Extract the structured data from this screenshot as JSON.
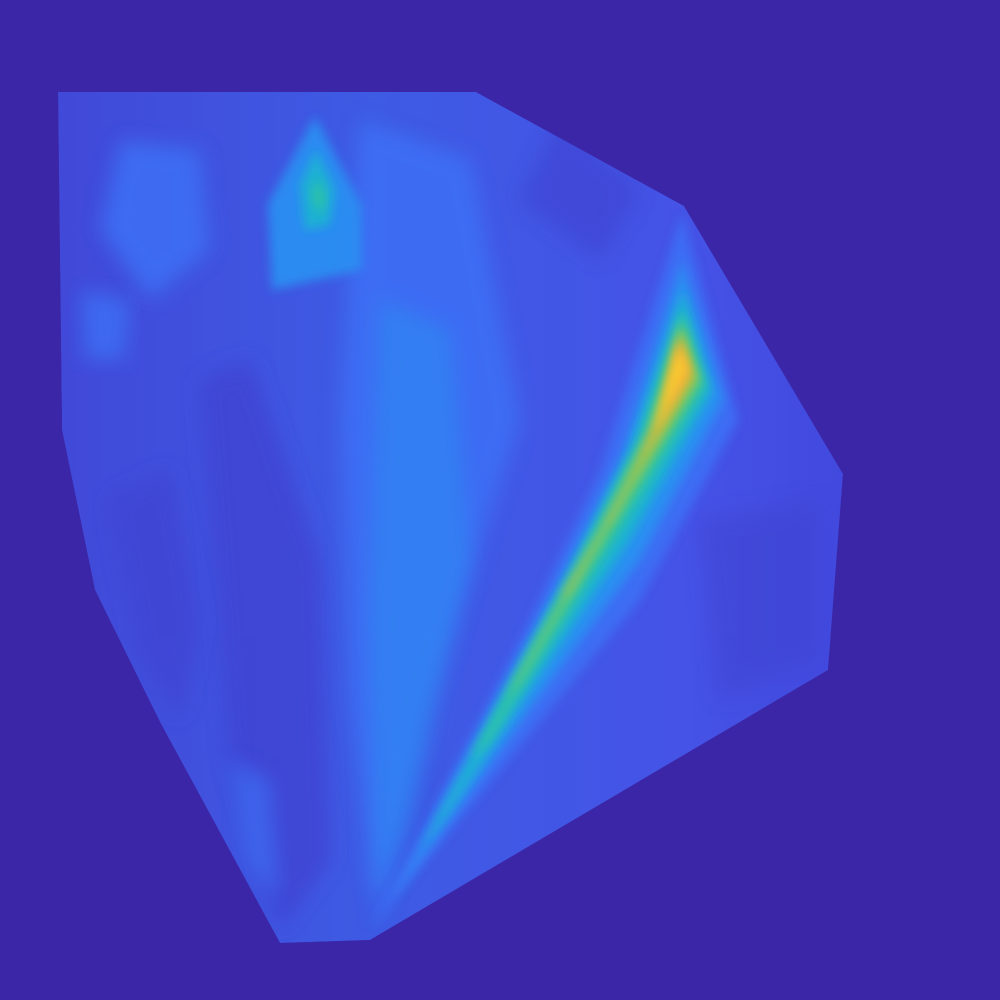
{
  "colors": {
    "background": "#3c26a8",
    "colormap": [
      "#3e26a8",
      "#4145d3",
      "#3c6ef4",
      "#2c8ef2",
      "#1ab2d2",
      "#2dc4a3",
      "#7bc862",
      "#c3bc3c",
      "#fbab3b",
      "#f9d22e"
    ]
  },
  "chart_data": {
    "type": "heatmap",
    "title": "",
    "xlabel": "",
    "ylabel": "",
    "axes_visible": false,
    "colorbar": false,
    "grid": false,
    "colormap": "parula",
    "region": "convex polygon",
    "peak_value": 0.75,
    "background_value": 0.0
  }
}
